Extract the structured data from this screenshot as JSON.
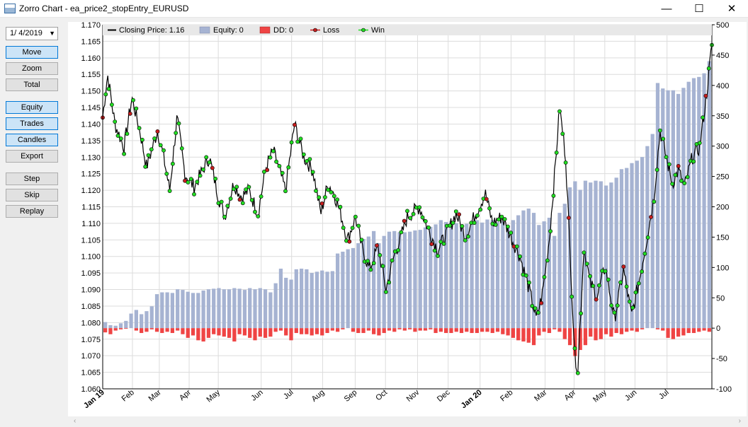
{
  "window": {
    "title": "Zorro Chart - ea_price2_stopEntry_EURUSD",
    "minimize_glyph": "—",
    "maximize_glyph": "☐",
    "close_glyph": "✕"
  },
  "sidebar": {
    "date_value": "1/ 4/2019",
    "buttons": [
      {
        "label": "Move",
        "active": true
      },
      {
        "label": "Zoom",
        "active": false
      },
      {
        "label": "Total",
        "active": false
      },
      {
        "label": "Equity",
        "active": true
      },
      {
        "label": "Trades",
        "active": true
      },
      {
        "label": "Candles",
        "active": true
      },
      {
        "label": "Export",
        "active": false
      },
      {
        "label": "Step",
        "active": false
      },
      {
        "label": "Skip",
        "active": false
      },
      {
        "label": "Replay",
        "active": false
      }
    ]
  },
  "legend": {
    "price": "Closing Price: 1.16",
    "equity": "Equity: 0",
    "dd": "DD: 0",
    "loss": "Loss",
    "win": "Win"
  },
  "colors": {
    "price_line": "#000000",
    "equity_bar": "#a6b3d2",
    "dd_bar": "#ef4444",
    "loss_marker": "#c81e1e",
    "win_marker": "#22dd22",
    "grid": "#dcdcdc",
    "legend_bg": "#e8e8e8"
  },
  "chart_data": {
    "type": "line",
    "left_axis": {
      "min": 1.06,
      "max": 1.17,
      "step": 0.005,
      "ticks": [
        "1.060",
        "1.065",
        "1.070",
        "1.075",
        "1.080",
        "1.085",
        "1.090",
        "1.095",
        "1.100",
        "1.105",
        "1.110",
        "1.115",
        "1.120",
        "1.125",
        "1.130",
        "1.135",
        "1.140",
        "1.145",
        "1.150",
        "1.155",
        "1.160",
        "1.165",
        "1.170"
      ]
    },
    "right_axis": {
      "min": -100,
      "max": 500,
      "step": 50,
      "ticks": [
        "-100",
        "-50",
        "0",
        "50",
        "100",
        "150",
        "200",
        "250",
        "300",
        "350",
        "400",
        "450",
        "500"
      ]
    },
    "x_labels": [
      {
        "text": "Jan 19",
        "bold": true,
        "pos": 0.0
      },
      {
        "text": "Feb",
        "bold": false,
        "pos": 0.0488
      },
      {
        "text": "Mar",
        "bold": false,
        "pos": 0.0929
      },
      {
        "text": "Apr",
        "bold": false,
        "pos": 0.1419
      },
      {
        "text": "May",
        "bold": false,
        "pos": 0.1897
      },
      {
        "text": "Jun",
        "bold": false,
        "pos": 0.2602
      },
      {
        "text": "Jul",
        "bold": false,
        "pos": 0.3101
      },
      {
        "text": "Aug",
        "bold": false,
        "pos": 0.3611
      },
      {
        "text": "Sep",
        "bold": false,
        "pos": 0.4145
      },
      {
        "text": "Oct",
        "bold": false,
        "pos": 0.4642
      },
      {
        "text": "Nov",
        "bold": false,
        "pos": 0.5168
      },
      {
        "text": "Dec",
        "bold": false,
        "pos": 0.5671
      },
      {
        "text": "Jan 20",
        "bold": true,
        "pos": 0.6195
      },
      {
        "text": "Feb",
        "bold": false,
        "pos": 0.6704
      },
      {
        "text": "Mar",
        "bold": false,
        "pos": 0.7262
      },
      {
        "text": "Apr",
        "bold": false,
        "pos": 0.7738
      },
      {
        "text": "May",
        "bold": false,
        "pos": 0.8242
      },
      {
        "text": "Jun",
        "bold": false,
        "pos": 0.8738
      },
      {
        "text": "Jul",
        "bold": false,
        "pos": 0.9264
      }
    ],
    "price_keypoints": [
      [
        0.0,
        1.142
      ],
      [
        0.008,
        1.155
      ],
      [
        0.02,
        1.14
      ],
      [
        0.035,
        1.133
      ],
      [
        0.048,
        1.148
      ],
      [
        0.062,
        1.137
      ],
      [
        0.072,
        1.127
      ],
      [
        0.09,
        1.138
      ],
      [
        0.1,
        1.13
      ],
      [
        0.11,
        1.12
      ],
      [
        0.122,
        1.142
      ],
      [
        0.135,
        1.125
      ],
      [
        0.15,
        1.121
      ],
      [
        0.175,
        1.13
      ],
      [
        0.19,
        1.118
      ],
      [
        0.2,
        1.112
      ],
      [
        0.215,
        1.122
      ],
      [
        0.228,
        1.118
      ],
      [
        0.24,
        1.12
      ],
      [
        0.255,
        1.113
      ],
      [
        0.268,
        1.127
      ],
      [
        0.28,
        1.132
      ],
      [
        0.3,
        1.12
      ],
      [
        0.315,
        1.14
      ],
      [
        0.33,
        1.13
      ],
      [
        0.345,
        1.126
      ],
      [
        0.358,
        1.113
      ],
      [
        0.37,
        1.122
      ],
      [
        0.38,
        1.119
      ],
      [
        0.392,
        1.112
      ],
      [
        0.402,
        1.105
      ],
      [
        0.415,
        1.112
      ],
      [
        0.425,
        1.103
      ],
      [
        0.438,
        1.096
      ],
      [
        0.452,
        1.103
      ],
      [
        0.465,
        1.09
      ],
      [
        0.478,
        1.1
      ],
      [
        0.488,
        1.105
      ],
      [
        0.5,
        1.112
      ],
      [
        0.52,
        1.115
      ],
      [
        0.535,
        1.108
      ],
      [
        0.55,
        1.102
      ],
      [
        0.565,
        1.107
      ],
      [
        0.58,
        1.113
      ],
      [
        0.595,
        1.106
      ],
      [
        0.61,
        1.112
      ],
      [
        0.628,
        1.119
      ],
      [
        0.64,
        1.11
      ],
      [
        0.655,
        1.112
      ],
      [
        0.67,
        1.106
      ],
      [
        0.685,
        1.1
      ],
      [
        0.7,
        1.09
      ],
      [
        0.712,
        1.081
      ],
      [
        0.722,
        1.089
      ],
      [
        0.733,
        1.105
      ],
      [
        0.742,
        1.125
      ],
      [
        0.75,
        1.145
      ],
      [
        0.76,
        1.13
      ],
      [
        0.768,
        1.098
      ],
      [
        0.775,
        1.07
      ],
      [
        0.78,
        1.066
      ],
      [
        0.79,
        1.103
      ],
      [
        0.8,
        1.092
      ],
      [
        0.812,
        1.088
      ],
      [
        0.825,
        1.097
      ],
      [
        0.84,
        1.081
      ],
      [
        0.855,
        1.096
      ],
      [
        0.868,
        1.082
      ],
      [
        0.88,
        1.092
      ],
      [
        0.892,
        1.104
      ],
      [
        0.905,
        1.118
      ],
      [
        0.915,
        1.138
      ],
      [
        0.925,
        1.13
      ],
      [
        0.935,
        1.122
      ],
      [
        0.945,
        1.126
      ],
      [
        0.955,
        1.121
      ],
      [
        0.968,
        1.13
      ],
      [
        0.98,
        1.133
      ],
      [
        0.992,
        1.15
      ],
      [
        1.0,
        1.164
      ]
    ],
    "bars": [
      {
        "equity": 10,
        "dd": -7
      },
      {
        "equity": 5,
        "dd": -10
      },
      {
        "equity": 4,
        "dd": -4
      },
      {
        "equity": 8,
        "dd": -2
      },
      {
        "equity": 12,
        "dd": -1
      },
      {
        "equity": 24,
        "dd": 0
      },
      {
        "equity": 30,
        "dd": -4
      },
      {
        "equity": 23,
        "dd": -8
      },
      {
        "equity": 28,
        "dd": -6
      },
      {
        "equity": 36,
        "dd": -2
      },
      {
        "equity": 56,
        "dd": -6
      },
      {
        "equity": 59,
        "dd": -8
      },
      {
        "equity": 59,
        "dd": -6
      },
      {
        "equity": 58,
        "dd": -8
      },
      {
        "equity": 64,
        "dd": -4
      },
      {
        "equity": 63,
        "dd": -10
      },
      {
        "equity": 60,
        "dd": -16
      },
      {
        "equity": 58,
        "dd": -12
      },
      {
        "equity": 58,
        "dd": -20
      },
      {
        "equity": 62,
        "dd": -22
      },
      {
        "equity": 64,
        "dd": -16
      },
      {
        "equity": 65,
        "dd": -10
      },
      {
        "equity": 66,
        "dd": -12
      },
      {
        "equity": 64,
        "dd": -14
      },
      {
        "equity": 64,
        "dd": -16
      },
      {
        "equity": 66,
        "dd": -22
      },
      {
        "equity": 65,
        "dd": -10
      },
      {
        "equity": 63,
        "dd": -12
      },
      {
        "equity": 66,
        "dd": -16
      },
      {
        "equity": 64,
        "dd": -20
      },
      {
        "equity": 66,
        "dd": -14
      },
      {
        "equity": 64,
        "dd": -16
      },
      {
        "equity": 59,
        "dd": -14
      },
      {
        "equity": 74,
        "dd": -6
      },
      {
        "equity": 98,
        "dd": -4
      },
      {
        "equity": 83,
        "dd": -12
      },
      {
        "equity": 80,
        "dd": -20
      },
      {
        "equity": 97,
        "dd": -8
      },
      {
        "equity": 98,
        "dd": -10
      },
      {
        "equity": 97,
        "dd": -10
      },
      {
        "equity": 91,
        "dd": -12
      },
      {
        "equity": 93,
        "dd": -10
      },
      {
        "equity": 95,
        "dd": -12
      },
      {
        "equity": 93,
        "dd": -8
      },
      {
        "equity": 94,
        "dd": -4
      },
      {
        "equity": 123,
        "dd": -6
      },
      {
        "equity": 126,
        "dd": -2
      },
      {
        "equity": 130,
        "dd": 0
      },
      {
        "equity": 132,
        "dd": -6
      },
      {
        "equity": 140,
        "dd": -8
      },
      {
        "equity": 147,
        "dd": -8
      },
      {
        "equity": 151,
        "dd": -4
      },
      {
        "equity": 160,
        "dd": -10
      },
      {
        "equity": 140,
        "dd": -12
      },
      {
        "equity": 152,
        "dd": -8
      },
      {
        "equity": 159,
        "dd": -4
      },
      {
        "equity": 160,
        "dd": -6
      },
      {
        "equity": 158,
        "dd": -2
      },
      {
        "equity": 158,
        "dd": -4
      },
      {
        "equity": 159,
        "dd": -2
      },
      {
        "equity": 161,
        "dd": -6
      },
      {
        "equity": 162,
        "dd": -4
      },
      {
        "equity": 166,
        "dd": -4
      },
      {
        "equity": 167,
        "dd": -2
      },
      {
        "equity": 171,
        "dd": -8
      },
      {
        "equity": 178,
        "dd": -6
      },
      {
        "equity": 175,
        "dd": -8
      },
      {
        "equity": 176,
        "dd": -8
      },
      {
        "equity": 173,
        "dd": -6
      },
      {
        "equity": 169,
        "dd": -8
      },
      {
        "equity": 172,
        "dd": -6
      },
      {
        "equity": 175,
        "dd": -8
      },
      {
        "equity": 178,
        "dd": -8
      },
      {
        "equity": 174,
        "dd": -6
      },
      {
        "equity": 179,
        "dd": -6
      },
      {
        "equity": 178,
        "dd": -8
      },
      {
        "equity": 175,
        "dd": -6
      },
      {
        "equity": 176,
        "dd": -10
      },
      {
        "equity": 166,
        "dd": -12
      },
      {
        "equity": 178,
        "dd": -16
      },
      {
        "equity": 186,
        "dd": -20
      },
      {
        "equity": 194,
        "dd": -22
      },
      {
        "equity": 197,
        "dd": -24
      },
      {
        "equity": 190,
        "dd": -28
      },
      {
        "equity": 170,
        "dd": -12
      },
      {
        "equity": 176,
        "dd": -6
      },
      {
        "equity": 182,
        "dd": -8
      },
      {
        "equity": 152,
        "dd": -2
      },
      {
        "equity": 190,
        "dd": -6
      },
      {
        "equity": 205,
        "dd": -18
      },
      {
        "equity": 232,
        "dd": -28
      },
      {
        "equity": 242,
        "dd": -46
      },
      {
        "equity": 228,
        "dd": -36
      },
      {
        "equity": 243,
        "dd": -28
      },
      {
        "equity": 240,
        "dd": -14
      },
      {
        "equity": 243,
        "dd": -20
      },
      {
        "equity": 242,
        "dd": -18
      },
      {
        "equity": 235,
        "dd": -10
      },
      {
        "equity": 240,
        "dd": -14
      },
      {
        "equity": 248,
        "dd": -8
      },
      {
        "equity": 262,
        "dd": -10
      },
      {
        "equity": 264,
        "dd": -6
      },
      {
        "equity": 272,
        "dd": -4
      },
      {
        "equity": 276,
        "dd": -6
      },
      {
        "equity": 282,
        "dd": -2
      },
      {
        "equity": 300,
        "dd": 0
      },
      {
        "equity": 320,
        "dd": 0
      },
      {
        "equity": 404,
        "dd": -2
      },
      {
        "equity": 395,
        "dd": -4
      },
      {
        "equity": 392,
        "dd": -16
      },
      {
        "equity": 392,
        "dd": -18
      },
      {
        "equity": 386,
        "dd": -14
      },
      {
        "equity": 396,
        "dd": -12
      },
      {
        "equity": 406,
        "dd": -8
      },
      {
        "equity": 412,
        "dd": -8
      },
      {
        "equity": 414,
        "dd": -6
      },
      {
        "equity": 420,
        "dd": -4
      },
      {
        "equity": 440,
        "dd": -6
      }
    ]
  }
}
